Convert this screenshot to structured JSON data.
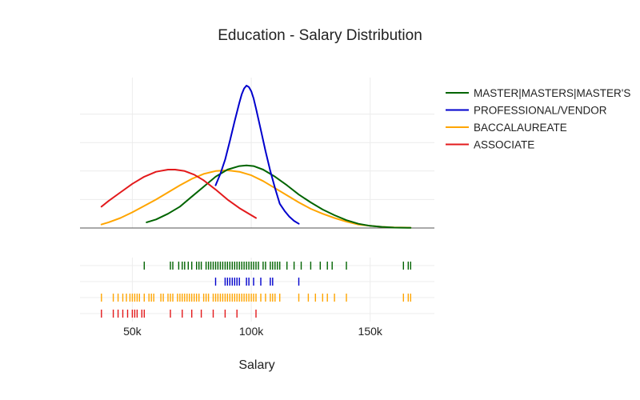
{
  "chart_data": {
    "type": "distplot",
    "title": "Education - Salary Distribution",
    "xlabel": "Salary",
    "ylabel": "",
    "xlim": [
      28000,
      177000
    ],
    "ylim": [
      0,
      1.0
    ],
    "x_ticks": [
      50000,
      100000,
      150000
    ],
    "x_tick_labels": [
      "50k",
      "100k",
      "150k"
    ],
    "y_gridlines": [
      0.2,
      0.4,
      0.6,
      0.8
    ],
    "legend_position": "top-right",
    "series": [
      {
        "name": "MASTER|MASTERS|MASTER'S",
        "color": "#006400",
        "density": {
          "x": [
            56000,
            60000,
            65000,
            70000,
            75000,
            80000,
            85000,
            90000,
            95000,
            98000,
            101000,
            105000,
            110000,
            115000,
            120000,
            125000,
            130000,
            135000,
            140000,
            145000,
            150000,
            155000,
            160000,
            167000
          ],
          "y": [
            0.04,
            0.06,
            0.1,
            0.15,
            0.22,
            0.29,
            0.36,
            0.41,
            0.435,
            0.44,
            0.435,
            0.41,
            0.36,
            0.3,
            0.235,
            0.18,
            0.13,
            0.09,
            0.055,
            0.03,
            0.015,
            0.008,
            0.003,
            0.001
          ]
        },
        "rug": [
          55000,
          66000,
          67000,
          69500,
          71000,
          72000,
          73500,
          75000,
          77000,
          78000,
          79000,
          81000,
          82000,
          83000,
          84000,
          85000,
          86000,
          87000,
          88000,
          89000,
          90000,
          91000,
          92000,
          93000,
          94000,
          95000,
          96000,
          97000,
          98000,
          99000,
          100000,
          101000,
          102000,
          103000,
          105000,
          106000,
          108000,
          109000,
          110000,
          111000,
          112000,
          115000,
          118000,
          121000,
          125000,
          129000,
          132000,
          134000,
          140000,
          164000,
          166000,
          167000
        ]
      },
      {
        "name": "PROFESSIONAL/VENDOR",
        "color": "#0000cd",
        "density": {
          "x": [
            85000,
            87000,
            89000,
            91000,
            93000,
            95000,
            96000,
            97000,
            98000,
            99000,
            100000,
            101000,
            102000,
            104000,
            106000,
            108000,
            110000,
            112000,
            114000,
            116000,
            118000,
            120000
          ],
          "y": [
            0.3,
            0.38,
            0.48,
            0.61,
            0.75,
            0.88,
            0.94,
            0.98,
            1.0,
            0.99,
            0.96,
            0.91,
            0.84,
            0.69,
            0.54,
            0.4,
            0.28,
            0.17,
            0.12,
            0.08,
            0.05,
            0.03
          ]
        },
        "rug": [
          85000,
          89000,
          90000,
          91000,
          92000,
          93000,
          94000,
          95000,
          98000,
          99000,
          101000,
          104000,
          108000,
          109000,
          120000
        ]
      },
      {
        "name": "BACCALAUREATE",
        "color": "#ffa500",
        "density": {
          "x": [
            37000,
            40000,
            45000,
            50000,
            55000,
            60000,
            65000,
            70000,
            75000,
            80000,
            85000,
            90000,
            95000,
            100000,
            105000,
            110000,
            115000,
            120000,
            125000,
            130000,
            135000,
            140000,
            145000,
            150000,
            155000,
            160000,
            167000
          ],
          "y": [
            0.025,
            0.04,
            0.07,
            0.11,
            0.155,
            0.2,
            0.25,
            0.3,
            0.345,
            0.38,
            0.4,
            0.405,
            0.395,
            0.37,
            0.33,
            0.28,
            0.23,
            0.18,
            0.135,
            0.1,
            0.07,
            0.045,
            0.025,
            0.015,
            0.008,
            0.004,
            0.002
          ]
        },
        "rug": [
          37000,
          42000,
          44000,
          46000,
          47500,
          49000,
          50000,
          51000,
          52000,
          53000,
          55000,
          57000,
          58000,
          59000,
          62000,
          63000,
          65000,
          66000,
          67000,
          69000,
          70000,
          71000,
          72000,
          73000,
          74000,
          75000,
          76000,
          77000,
          78000,
          80000,
          81000,
          82000,
          84000,
          85000,
          86000,
          87000,
          88000,
          89000,
          90000,
          91000,
          92000,
          93000,
          94000,
          95000,
          96000,
          97000,
          98000,
          99000,
          100000,
          101000,
          102000,
          104000,
          106000,
          108000,
          109000,
          110000,
          112000,
          120000,
          124000,
          127000,
          130000,
          132000,
          135000,
          140000,
          164000,
          166000,
          167000
        ]
      },
      {
        "name": "ASSOCIATE",
        "color": "#e31a1c",
        "density": {
          "x": [
            37000,
            40000,
            45000,
            50000,
            55000,
            60000,
            65000,
            68000,
            72000,
            76000,
            80000,
            85000,
            90000,
            95000,
            100000,
            102000
          ],
          "y": [
            0.15,
            0.19,
            0.25,
            0.31,
            0.36,
            0.395,
            0.41,
            0.41,
            0.4,
            0.375,
            0.335,
            0.27,
            0.2,
            0.14,
            0.09,
            0.07
          ]
        },
        "rug": [
          37000,
          42000,
          44000,
          46000,
          48000,
          50000,
          51000,
          52000,
          54000,
          55000,
          66000,
          71000,
          75000,
          79000,
          84000,
          89000,
          94000,
          102000
        ]
      }
    ]
  }
}
